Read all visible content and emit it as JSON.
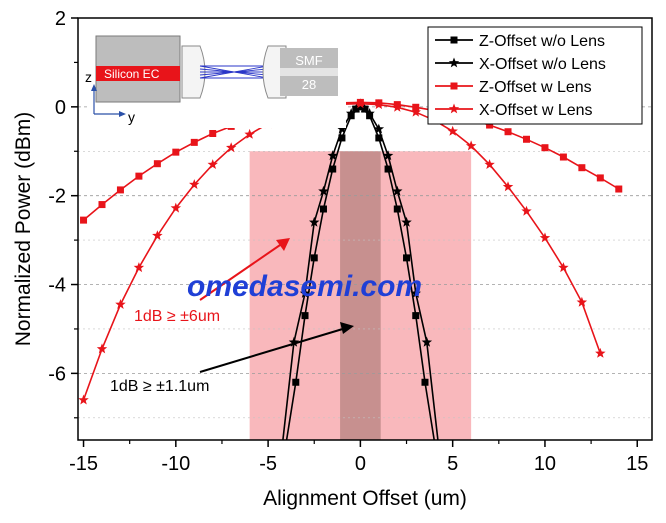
{
  "chart_data": {
    "type": "line",
    "xlabel": "Alignment Offset (um)",
    "ylabel": "Normalized Power (dBm)",
    "xlim": [
      -15.3,
      15.8
    ],
    "ylim": [
      -7.5,
      2
    ],
    "x_ticks": [
      -15,
      -10,
      -5,
      0,
      5,
      10,
      15
    ],
    "y_ticks": [
      -6,
      -4,
      -2,
      0,
      2
    ],
    "grid": "horizontal dashed",
    "legend_position": "top-right",
    "series": [
      {
        "name": "Z-Offset w/o Lens",
        "color": "#000000",
        "marker": "square",
        "x": [
          -4,
          -3.5,
          -3,
          -2.5,
          -2,
          -1.5,
          -1,
          -0.5,
          -0.25,
          0,
          0.25,
          0.5,
          1,
          1.5,
          2,
          2.5,
          3,
          3.5,
          4
        ],
        "y": [
          -7.5,
          -6.2,
          -4.7,
          -3.4,
          -2.3,
          -1.4,
          -0.7,
          -0.2,
          -0.05,
          0,
          -0.05,
          -0.2,
          -0.7,
          -1.4,
          -2.3,
          -3.4,
          -4.7,
          -6.2,
          -7.5
        ]
      },
      {
        "name": "X-Offset w/o Lens",
        "color": "#000000",
        "marker": "star",
        "x": [
          -4.2,
          -3.6,
          -3,
          -2.5,
          -2,
          -1.5,
          -1,
          -0.5,
          -0.2,
          0,
          0.2,
          0.5,
          1,
          1.5,
          2,
          2.5,
          3,
          3.6,
          4.2
        ],
        "y": [
          -7.5,
          -5.3,
          -4.2,
          -2.6,
          -1.9,
          -1.1,
          -0.5,
          -0.15,
          -0.03,
          0,
          -0.03,
          -0.15,
          -0.5,
          -1.1,
          -1.9,
          -2.6,
          -4.2,
          -5.3,
          -7.5
        ]
      },
      {
        "name": "Z-Offset w Lens",
        "color": "#e8141a",
        "marker": "square",
        "x": [
          -15,
          -14,
          -13,
          -12,
          -11,
          -10,
          -9,
          -8,
          -7,
          -6,
          -5,
          -4,
          -3,
          -2,
          -1,
          0,
          1,
          2,
          3,
          4,
          5,
          6,
          7,
          8,
          9,
          10,
          11,
          12,
          13,
          14
        ],
        "y": [
          -2.55,
          -2.2,
          -1.87,
          -1.56,
          -1.28,
          -1.02,
          -0.8,
          -0.6,
          -0.44,
          -0.3,
          -0.18,
          -0.09,
          -0.02,
          0.04,
          0.09,
          0.1,
          0.09,
          0.05,
          -0.01,
          -0.08,
          -0.17,
          -0.28,
          -0.41,
          -0.56,
          -0.73,
          -0.92,
          -1.13,
          -1.37,
          -1.6,
          -1.85
        ]
      },
      {
        "name": "X-Offset w Lens",
        "color": "#e8141a",
        "marker": "star",
        "x": [
          -15,
          -14,
          -13,
          -12,
          -11,
          -10,
          -9,
          -8,
          -7,
          -6,
          -5,
          -4,
          -3,
          -2,
          -1,
          0,
          1,
          2,
          3,
          4,
          5,
          6,
          7,
          8,
          9,
          10,
          11,
          12,
          13
        ],
        "y": [
          -6.6,
          -5.45,
          -4.45,
          -3.62,
          -2.9,
          -2.28,
          -1.75,
          -1.3,
          -0.92,
          -0.62,
          -0.38,
          -0.2,
          -0.07,
          0.02,
          0.06,
          0.07,
          0.05,
          -0.01,
          -0.12,
          -0.3,
          -0.55,
          -0.88,
          -1.3,
          -1.8,
          -2.35,
          -2.95,
          -3.62,
          -4.4,
          -5.55
        ]
      }
    ],
    "shaded_regions": [
      {
        "x_range": [
          -6,
          6
        ],
        "y_range": [
          -7.5,
          -1
        ],
        "color": "#f9b8bc"
      },
      {
        "x_range": [
          -1.1,
          1.1
        ],
        "y_range": [
          -7.5,
          -1
        ],
        "color": "#c7908f"
      }
    ],
    "annotations": [
      {
        "text": "1dB ≥ ±6um",
        "color": "#e8141a"
      },
      {
        "text": "1dB ≥ ±1.1um",
        "color": "#000000"
      }
    ],
    "inset": {
      "chip_label": "Silicon EC",
      "fiber_label_line1": "SMF",
      "fiber_label_line2": "28",
      "axis_z": "z",
      "axis_y": "y"
    },
    "watermark": "omedasemi.com"
  }
}
